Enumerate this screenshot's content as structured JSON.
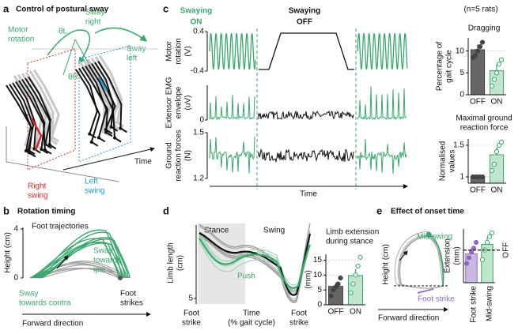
{
  "panels": {
    "a": {
      "letter": "a",
      "title": "Control of postural sway",
      "motor_rotation": [
        "Motor",
        "rotation"
      ],
      "theta_l": "θL",
      "sway_right": [
        "Sway",
        "right"
      ],
      "theta_r": "θR",
      "sway_left": [
        "Sway",
        "left"
      ],
      "time": "Time",
      "right_swing": [
        "Right",
        "swing"
      ],
      "left_swing": [
        "Left",
        "swing"
      ]
    },
    "b": {
      "letter": "b",
      "title": "Rotation timing",
      "foot_trajectories": "Foot trajectories",
      "ylabel": "Height (cm)",
      "ylim": [
        0,
        4
      ],
      "yticks": [
        0,
        4
      ],
      "sway_ipsi": [
        "Sway",
        "towards",
        "ipsi"
      ],
      "sway_contra": [
        "Sway",
        "towards contra"
      ],
      "foot_strikes": [
        "Foot",
        "strikes"
      ],
      "xlabel": "Forward direction"
    },
    "c": {
      "letter": "c",
      "swaying_on": [
        "Swaying",
        "ON"
      ],
      "swaying_off": [
        "Swaying",
        "OFF"
      ],
      "n": "(n=5 rats)",
      "xlabel": "Time",
      "rows": [
        {
          "label": [
            "Motor",
            "rotation",
            "(V)"
          ],
          "ylim": [
            -0.4,
            0.4
          ],
          "yticks": [
            -0.4,
            0.4
          ]
        },
        {
          "label": [
            "Extensor EMG",
            "envelope",
            "(uV)"
          ],
          "yticks": [
            0
          ]
        },
        {
          "label": [
            "Ground",
            "reaction forces",
            "(N)"
          ],
          "ylim": [
            1.2,
            1.5
          ],
          "yticks": [
            1.2,
            1.5
          ]
        }
      ]
    },
    "d": {
      "letter": "d",
      "stance": "Stance",
      "swing": "Swing",
      "ylabel": [
        "Limb length",
        "(cm)"
      ],
      "yticks": [
        5
      ],
      "push": "Push",
      "foot_strike_start": [
        "Foot",
        "strike"
      ],
      "xlabel": [
        "Time",
        "(% gait cycle)"
      ],
      "foot_strike_end": [
        "Foot",
        "strike"
      ]
    },
    "e": {
      "letter": "e",
      "title": "Effect of onset time",
      "mid_swing": "Mid-swing",
      "foot_strike": "Foot strike",
      "ylabel": "Height (cm)",
      "xlabel": "Forward direction"
    }
  },
  "chart_data": [
    {
      "type": "bar",
      "title": [
        "Dragging"
      ],
      "ylabel": [
        "Percentage of",
        "gait cycle"
      ],
      "categories": [
        "OFF",
        "ON"
      ],
      "values": [
        10.3,
        5.5
      ],
      "errors": [
        1.2,
        1.5
      ],
      "points": [
        [
          8.5,
          9,
          10,
          11,
          12
        ],
        [
          2,
          3.5,
          5,
          7,
          8
        ]
      ],
      "colors": [
        "#444444",
        "#3aa76d"
      ],
      "fills": [
        "#666666",
        "#bfe5cd"
      ],
      "ylim": [
        0,
        13
      ],
      "yticks": [
        0,
        5,
        10
      ],
      "grid": true
    },
    {
      "type": "bar",
      "title": [
        "Maximal ground",
        "reaction force"
      ],
      "ylabel": [
        "Normalised",
        "values"
      ],
      "categories": [
        "OFF",
        "ON"
      ],
      "values": [
        1.0,
        1.35
      ],
      "errors": [
        0.01,
        0.12
      ],
      "points": [
        [
          1,
          1,
          1,
          1,
          1
        ],
        [
          1.1,
          1.2,
          1.4,
          1.5,
          1.55
        ]
      ],
      "colors": [
        "#444444",
        "#3aa76d"
      ],
      "fills": [
        "#666666",
        "#bfe5cd"
      ],
      "ylim": [
        0.9,
        1.6
      ],
      "yticks": [
        1,
        1.5
      ],
      "grid": true
    },
    {
      "type": "bar",
      "title": [
        "Limb extension",
        "during stance"
      ],
      "ylabel": [
        "(mm)"
      ],
      "categories": [
        "OFF",
        "ON"
      ],
      "values": [
        6.2,
        9.8
      ],
      "errors": [
        1.2,
        2.2
      ],
      "points": [
        [
          3,
          5,
          6,
          7,
          9
        ],
        [
          4,
          7,
          10,
          13,
          16
        ]
      ],
      "colors": [
        "#444444",
        "#3aa76d"
      ],
      "fills": [
        "#666666",
        "#bfe5cd"
      ],
      "ylim": [
        0,
        17
      ],
      "yticks": [
        0,
        5,
        10,
        15
      ],
      "grid": true
    },
    {
      "type": "bar",
      "ylabel": [
        "Extension",
        "(mm)"
      ],
      "categories": [
        "Foot strike",
        "Mid-swing"
      ],
      "values": [
        7.5,
        10
      ],
      "errors": [
        1.5,
        1.8
      ],
      "points": [
        [
          5,
          6.5,
          8,
          9,
          10.5
        ],
        [
          6,
          8.5,
          10.5,
          12,
          13
        ]
      ],
      "colors": [
        "#8e6bbf",
        "#3aa76d"
      ],
      "fills": [
        "#c9b8e3",
        "#bfe5cd"
      ],
      "ylim": [
        0,
        14
      ],
      "yticks": [],
      "reference": {
        "value": 8.5,
        "label": "OFF"
      },
      "grid": true
    }
  ]
}
